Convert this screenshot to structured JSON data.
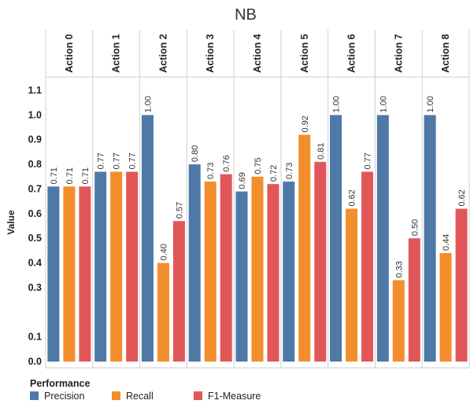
{
  "chart_data": {
    "type": "bar",
    "title": "NB",
    "ylabel": "Value",
    "xlabel": "",
    "ylim": [
      0,
      1.1
    ],
    "yticks": [
      0.0,
      0.1,
      0.3,
      0.4,
      0.5,
      0.6,
      0.7,
      0.8,
      0.9,
      1.0,
      1.1
    ],
    "ytick_labels": [
      "0.0",
      "0.1",
      "0.3",
      "0.4",
      "0.5",
      "0.6",
      "0.7",
      "0.8",
      "0.9",
      "1.0",
      "1.1"
    ],
    "categories": [
      "Action 0",
      "Action 1",
      "Action 2",
      "Action 3",
      "Action 4",
      "Action 5",
      "Action 6",
      "Action 7",
      "Action 8"
    ],
    "legend_title": "Performance",
    "legend_position": "bottom",
    "series": [
      {
        "name": "Precision",
        "color": "#4e79a7",
        "values": [
          0.71,
          0.77,
          1.0,
          0.8,
          0.69,
          0.73,
          1.0,
          1.0,
          1.0
        ],
        "labels": [
          "0.71",
          "0.77",
          "1.00",
          "0.80",
          "0.69",
          "0.73",
          "1.00",
          "1.00",
          "1.00"
        ]
      },
      {
        "name": "Recall",
        "color": "#f28e2b",
        "values": [
          0.71,
          0.77,
          0.4,
          0.73,
          0.75,
          0.92,
          0.62,
          0.33,
          0.44
        ],
        "labels": [
          "0.71",
          "0.77",
          "0.40",
          "0.73",
          "0.75",
          "0.92",
          "0.62",
          "0.33",
          "0.44"
        ]
      },
      {
        "name": "F1-Measure",
        "color": "#e15759",
        "values": [
          0.71,
          0.77,
          0.57,
          0.76,
          0.72,
          0.81,
          0.77,
          0.5,
          0.62
        ],
        "labels": [
          "0.71",
          "0.77",
          "0.57",
          "0.76",
          "0.72",
          "0.81",
          "0.77",
          "0.50",
          "0.62"
        ]
      }
    ],
    "grid": false
  }
}
